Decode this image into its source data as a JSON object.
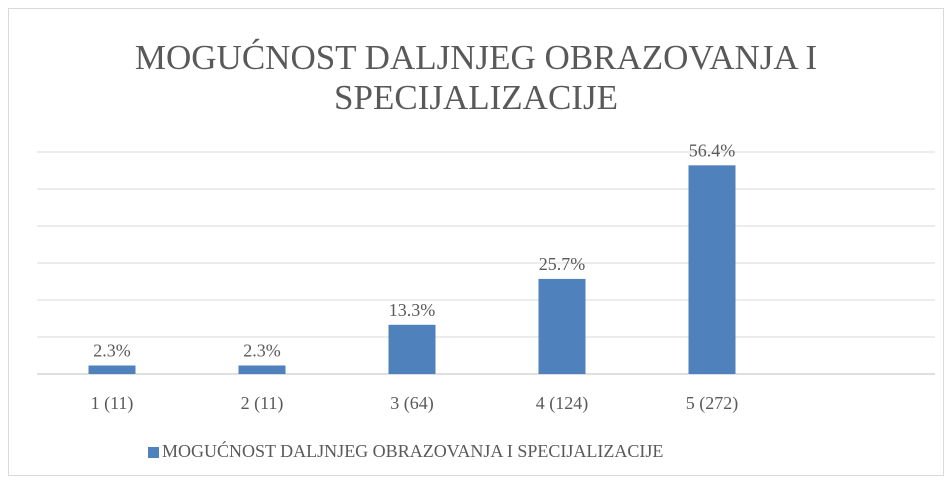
{
  "chart_data": {
    "type": "bar",
    "title": "MOGUĆNOST DALJNJEG OBRAZOVANJA I SPECIJALIZACIJE",
    "categories": [
      "1 (11)",
      "2 (11)",
      "3 (64)",
      "4 (124)",
      "5 (272)"
    ],
    "series": [
      {
        "name": "MOGUĆNOST DALJNJEG OBRAZOVANJA I SPECIJALIZACIJE",
        "color": "#4f81bd",
        "values": [
          2.3,
          2.3,
          13.3,
          25.7,
          56.4
        ],
        "value_labels": [
          "2.3%",
          "2.3%",
          "13.3%",
          "25.7%",
          "56.4%"
        ]
      }
    ],
    "ylim": [
      0,
      60
    ],
    "yticks": [
      0,
      10,
      20,
      30,
      40,
      50,
      60
    ],
    "grid": true,
    "legend": "bottom"
  }
}
